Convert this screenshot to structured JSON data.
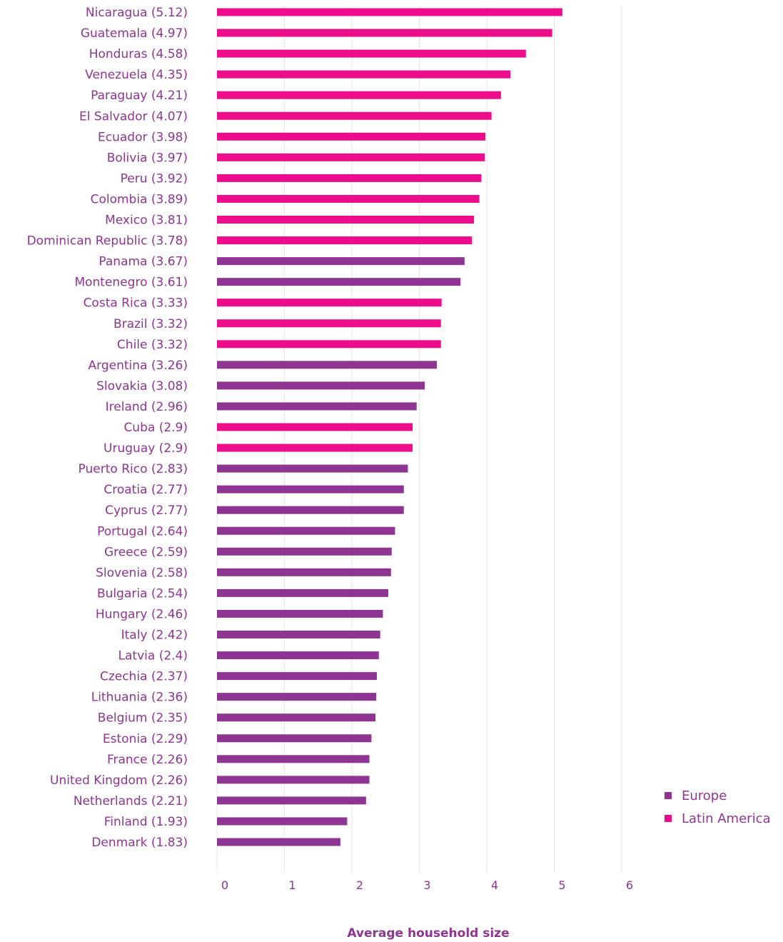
{
  "chart_data": {
    "type": "bar",
    "orientation": "horizontal",
    "title": "",
    "xlabel": "Average household size",
    "ylabel": "",
    "xlim": [
      0,
      6
    ],
    "x_ticks": [
      "0",
      "1",
      "2",
      "3",
      "4",
      "5",
      "6"
    ],
    "grid": true,
    "legend_position": "bottom-right",
    "colors": {
      "Europe": "#8e3593",
      "Latin America": "#ec0c8c",
      "axis_text": "#8e3593",
      "grid": "#e6e6e6"
    },
    "legend": [
      "Europe",
      "Latin America"
    ],
    "categories": [
      "Nicaragua (5.12)",
      "Guatemala (4.97)",
      "Honduras (4.58)",
      "Venezuela (4.35)",
      "Paraguay (4.21)",
      "El Salvador (4.07)",
      "Ecuador (3.98)",
      "Bolivia (3.97)",
      "Peru (3.92)",
      "Colombia (3.89)",
      "Mexico (3.81)",
      "Dominican Republic (3.78)",
      "Panama  (3.67)",
      "Montenegro (3.61)",
      "Costa Rica (3.33)",
      "Brazil (3.32)",
      "Chile (3.32)",
      "Argentina (3.26)",
      "Slovakia (3.08)",
      "Ireland (2.96)",
      "Cuba (2.9)",
      "Uruguay (2.9)",
      "Puerto Rico (2.83)",
      "Croatia (2.77)",
      "Cyprus (2.77)",
      "Portugal (2.64)",
      "Greece (2.59)",
      "Slovenia (2.58)",
      "Bulgaria (2.54)",
      "Hungary  (2.46)",
      "Italy (2.42)",
      "Latvia (2.4)",
      "Czechia (2.37)",
      "Lithuania (2.36)",
      "Belgium (2.35)",
      "Estonia (2.29)",
      "France (2.26)",
      "United Kingdom (2.26)",
      "Netherlands (2.21)",
      "Finland (1.93)",
      "Denmark (1.83)"
    ],
    "values": [
      5.12,
      4.97,
      4.58,
      4.35,
      4.21,
      4.07,
      3.98,
      3.97,
      3.92,
      3.89,
      3.81,
      3.78,
      3.67,
      3.61,
      3.33,
      3.32,
      3.32,
      3.26,
      3.08,
      2.96,
      2.9,
      2.9,
      2.83,
      2.77,
      2.77,
      2.64,
      2.59,
      2.58,
      2.54,
      2.46,
      2.42,
      2.4,
      2.37,
      2.36,
      2.35,
      2.29,
      2.26,
      2.26,
      2.21,
      1.93,
      1.83
    ],
    "groups": [
      "Latin America",
      "Latin America",
      "Latin America",
      "Latin America",
      "Latin America",
      "Latin America",
      "Latin America",
      "Latin America",
      "Latin America",
      "Latin America",
      "Latin America",
      "Latin America",
      "Europe",
      "Europe",
      "Latin America",
      "Latin America",
      "Latin America",
      "Europe",
      "Europe",
      "Europe",
      "Latin America",
      "Latin America",
      "Europe",
      "Europe",
      "Europe",
      "Europe",
      "Europe",
      "Europe",
      "Europe",
      "Europe",
      "Europe",
      "Europe",
      "Europe",
      "Europe",
      "Europe",
      "Europe",
      "Europe",
      "Europe",
      "Europe",
      "Europe",
      "Europe"
    ]
  }
}
